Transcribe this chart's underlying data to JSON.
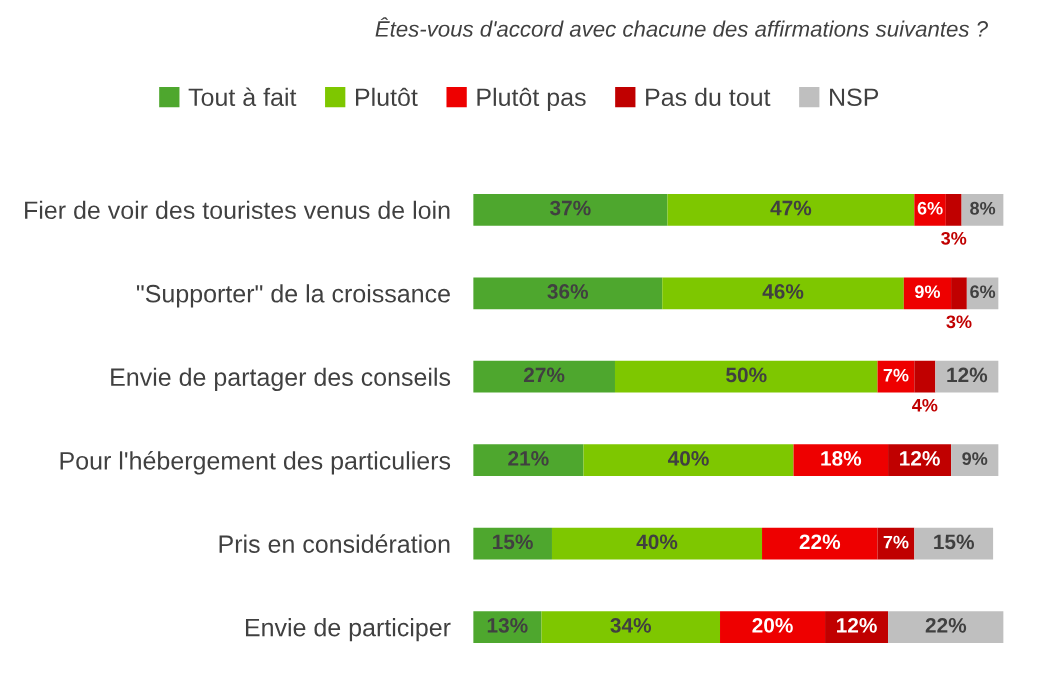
{
  "chart_data": {
    "type": "bar",
    "orientation": "horizontal",
    "stacked": true,
    "legend": "top",
    "grid": false,
    "tick_labels": "y",
    "title": "Êtes-vous d'accord avec chacune des affirmations suivantes ?",
    "categories": [
      "Fier de voir des touristes venus de loin",
      "\"Supporter\" de la croissance",
      "Envie de partager des conseils",
      "Pour l'hébergement des particuliers",
      "Pris en considération",
      "Envie de participer"
    ],
    "series": [
      {
        "name": "Tout à fait",
        "color": "#4ea72e",
        "values": [
          37,
          36,
          27,
          21,
          15,
          13
        ],
        "value_labels": [
          "37%",
          "36%",
          "27%",
          "21%",
          "15%",
          "13%"
        ]
      },
      {
        "name": "Plutôt",
        "color": "#7ec700",
        "values": [
          47,
          46,
          50,
          40,
          40,
          34
        ],
        "value_labels": [
          "47%",
          "46%",
          "50%",
          "40%",
          "40%",
          "34%"
        ]
      },
      {
        "name": "Plutôt pas",
        "color": "#ee0000",
        "values": [
          6,
          9,
          7,
          18,
          22,
          20
        ],
        "value_labels": [
          "6%",
          "9%",
          "7%",
          "18%",
          "22%",
          "20%"
        ]
      },
      {
        "name": "Pas du tout",
        "color": "#c00000",
        "values": [
          3,
          3,
          4,
          12,
          7,
          12
        ],
        "value_labels": [
          "3%",
          "3%",
          "4%",
          "12%",
          "7%",
          "12%"
        ]
      },
      {
        "name": "NSP",
        "color": "#bfbfbf",
        "values": [
          8,
          6,
          12,
          9,
          15,
          22
        ],
        "value_labels": [
          "8%",
          "6%",
          "12%",
          "9%",
          "15%",
          "22%"
        ]
      }
    ]
  }
}
